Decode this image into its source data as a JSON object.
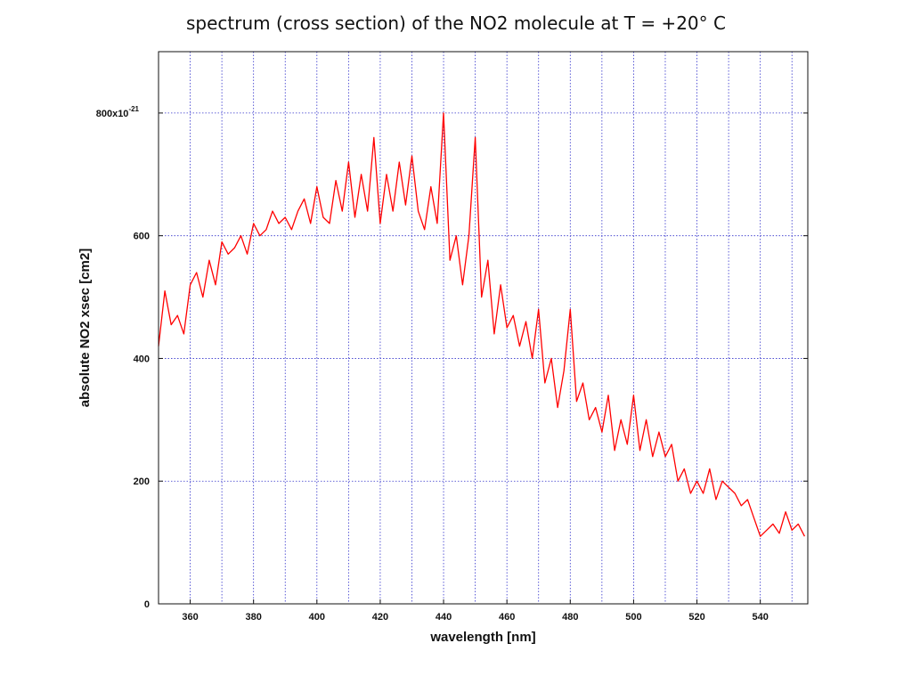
{
  "page": {
    "title": "spectrum (cross section) of the NO2 molecule at T = +20° C"
  },
  "chart_data": {
    "type": "line",
    "title": "spectrum (cross section) of the NO2 molecule at T = +20° C",
    "xlabel": "wavelength [nm]",
    "ylabel": "absolute NO2 xsec [cm2]",
    "xlim": [
      350,
      555
    ],
    "ylim": [
      0,
      900
    ],
    "x_ticks": [
      360,
      380,
      400,
      420,
      440,
      460,
      480,
      500,
      520,
      540
    ],
    "x_tick_labels": [
      "360",
      "380",
      "400",
      "420",
      "440",
      "460",
      "480",
      "500",
      "520",
      "540"
    ],
    "y_ticks": [
      0,
      200,
      400,
      600,
      800
    ],
    "y_tick_labels": [
      "0",
      "200",
      "400",
      "600",
      "800x10"
    ],
    "y_tick_exponent": "-21",
    "grid": true,
    "grid_color": "#3333cc",
    "series_color": "#ff0000",
    "series": [
      {
        "x": [
          350,
          352,
          354,
          356,
          358,
          360,
          362,
          364,
          366,
          368,
          370,
          372,
          374,
          376,
          378,
          380,
          382,
          384,
          386,
          388,
          390,
          392,
          394,
          396,
          398,
          400,
          402,
          404,
          406,
          408,
          410,
          412,
          414,
          416,
          418,
          420,
          422,
          424,
          426,
          428,
          430,
          432,
          434,
          436,
          438,
          440,
          442,
          444,
          446,
          448,
          450,
          452,
          454,
          456,
          458,
          460,
          462,
          464,
          466,
          468,
          470,
          472,
          474,
          476,
          478,
          480,
          482,
          484,
          486,
          488,
          490,
          492,
          494,
          496,
          498,
          500,
          502,
          504,
          506,
          508,
          510,
          512,
          514,
          516,
          518,
          520,
          522,
          524,
          526,
          528,
          530,
          532,
          534,
          536,
          538,
          540,
          542,
          544,
          546,
          548,
          550,
          552,
          554
        ],
        "values": [
          420,
          510,
          455,
          470,
          440,
          520,
          540,
          500,
          560,
          520,
          590,
          570,
          580,
          600,
          570,
          620,
          600,
          610,
          640,
          620,
          630,
          610,
          640,
          660,
          620,
          680,
          630,
          620,
          690,
          640,
          720,
          630,
          700,
          640,
          760,
          620,
          700,
          640,
          720,
          650,
          730,
          640,
          610,
          680,
          620,
          800,
          560,
          600,
          520,
          600,
          760,
          500,
          560,
          440,
          520,
          450,
          470,
          420,
          460,
          400,
          480,
          360,
          400,
          320,
          380,
          480,
          330,
          360,
          300,
          320,
          280,
          340,
          250,
          300,
          260,
          340,
          250,
          300,
          240,
          280,
          240,
          260,
          200,
          220,
          180,
          200,
          180,
          220,
          170,
          200,
          190,
          180,
          160,
          170,
          140,
          110,
          120,
          130,
          115,
          150,
          120,
          130,
          110
        ]
      }
    ]
  }
}
